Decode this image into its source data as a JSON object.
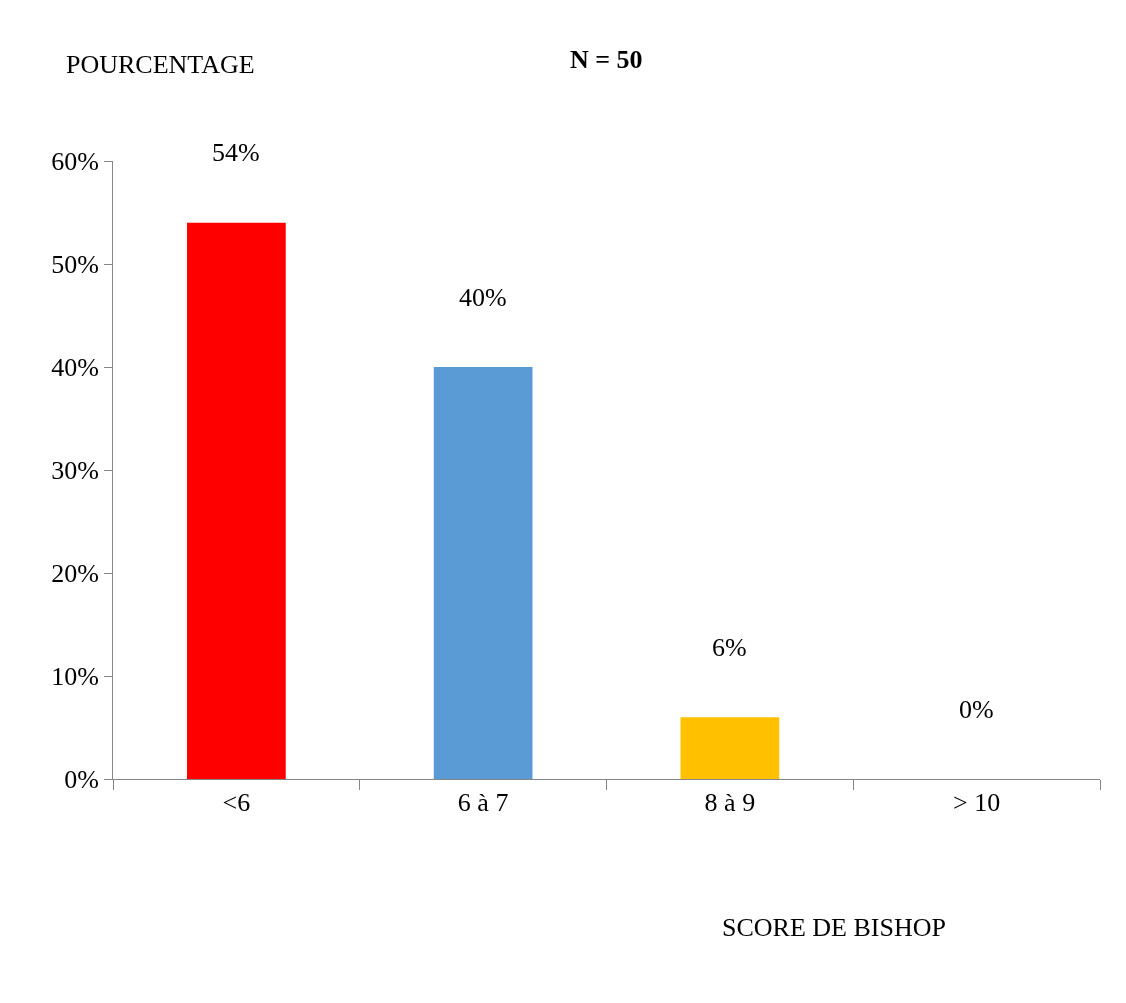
{
  "chart_data": {
    "type": "bar",
    "title": "N = 50",
    "ylabel": "POURCENTAGE",
    "xlabel": "SCORE DE BISHOP",
    "categories": [
      "<6",
      "6 à 7",
      "8 à 9",
      "> 10"
    ],
    "values": [
      54,
      40,
      6,
      0
    ],
    "colors": [
      "#ff0000",
      "#5b9bd5",
      "#ffc000",
      "#70ad47"
    ],
    "value_labels": [
      "54%",
      "40%",
      "6%",
      "0%"
    ],
    "ylim": [
      0,
      60
    ],
    "yticks": [
      {
        "value": 0,
        "label": "0%"
      },
      {
        "value": 10,
        "label": "10%"
      },
      {
        "value": 20,
        "label": "20%"
      },
      {
        "value": 30,
        "label": "30%"
      },
      {
        "value": 40,
        "label": "40%"
      },
      {
        "value": 50,
        "label": "50%"
      },
      {
        "value": 60,
        "label": "60%"
      }
    ],
    "tick_labels": "xy"
  }
}
